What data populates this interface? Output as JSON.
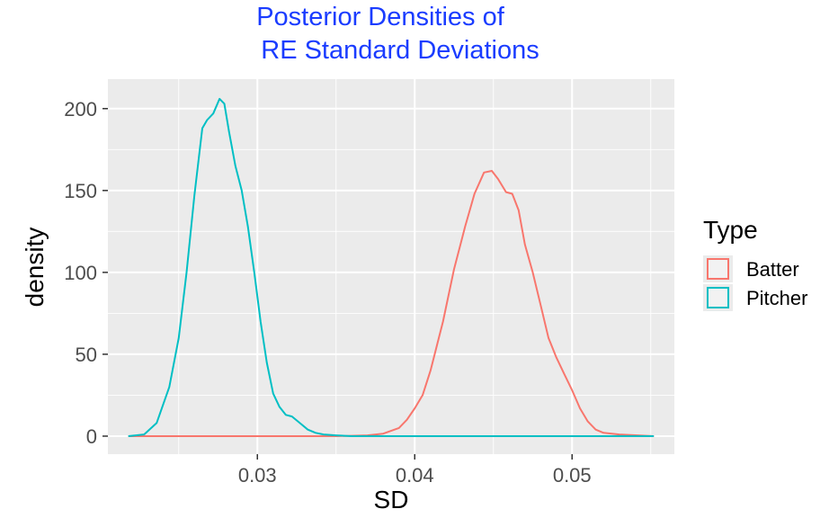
{
  "chart_data": {
    "type": "line",
    "title_lines": [
      "Posterior Densities of",
      "RE Standard Deviations"
    ],
    "title_color": "#1a3cff",
    "xlabel": "SD",
    "ylabel": "density",
    "xlim": [
      0.0205,
      0.0565
    ],
    "ylim": [
      -11,
      218
    ],
    "x_ticks": [
      0.03,
      0.04,
      0.05
    ],
    "x_tick_labels": [
      "0.03",
      "0.04",
      "0.05"
    ],
    "y_ticks": [
      0,
      50,
      100,
      150,
      200
    ],
    "y_tick_labels": [
      "0",
      "50",
      "100",
      "150",
      "200"
    ],
    "x_minor": [
      0.025,
      0.035,
      0.045,
      0.055
    ],
    "y_minor": [
      25,
      75,
      125,
      175
    ],
    "panel_background": "#ebebeb",
    "grid": true,
    "legend": {
      "title": "Type",
      "position": "right",
      "entries": [
        {
          "label": "Batter",
          "color": "#f8766d"
        },
        {
          "label": "Pitcher",
          "color": "#00bfc4"
        }
      ]
    },
    "series": [
      {
        "name": "Batter",
        "color": "#f8766d",
        "x": [
          0.0218,
          0.03,
          0.035,
          0.037,
          0.038,
          0.039,
          0.0395,
          0.04,
          0.0405,
          0.041,
          0.0418,
          0.0425,
          0.0432,
          0.0438,
          0.0444,
          0.0449,
          0.0453,
          0.0458,
          0.0462,
          0.0466,
          0.047,
          0.0475,
          0.048,
          0.0485,
          0.049,
          0.0495,
          0.05,
          0.0505,
          0.051,
          0.0515,
          0.052,
          0.053,
          0.0552
        ],
        "y": [
          0,
          0,
          0,
          0.5,
          1.5,
          5,
          10,
          17,
          25,
          40,
          70,
          102,
          128,
          148,
          161,
          162,
          157,
          149,
          148,
          138,
          117,
          100,
          80,
          60,
          48,
          38,
          28,
          17,
          9,
          4,
          2,
          1,
          0
        ]
      },
      {
        "name": "Pitcher",
        "color": "#00bfc4",
        "x": [
          0.0218,
          0.0228,
          0.0236,
          0.0244,
          0.025,
          0.0255,
          0.026,
          0.0265,
          0.0268,
          0.0272,
          0.0276,
          0.0279,
          0.0282,
          0.0286,
          0.029,
          0.0294,
          0.0298,
          0.0302,
          0.0306,
          0.031,
          0.0314,
          0.0318,
          0.0322,
          0.0327,
          0.0332,
          0.0337,
          0.0342,
          0.035,
          0.036,
          0.04,
          0.05,
          0.0552
        ],
        "y": [
          0,
          1,
          8,
          30,
          60,
          100,
          147,
          188,
          193,
          197,
          206,
          203,
          186,
          165,
          150,
          128,
          100,
          70,
          45,
          26,
          18,
          13,
          12,
          8,
          4,
          2,
          1,
          0.5,
          0,
          0,
          0,
          0
        ]
      }
    ]
  }
}
